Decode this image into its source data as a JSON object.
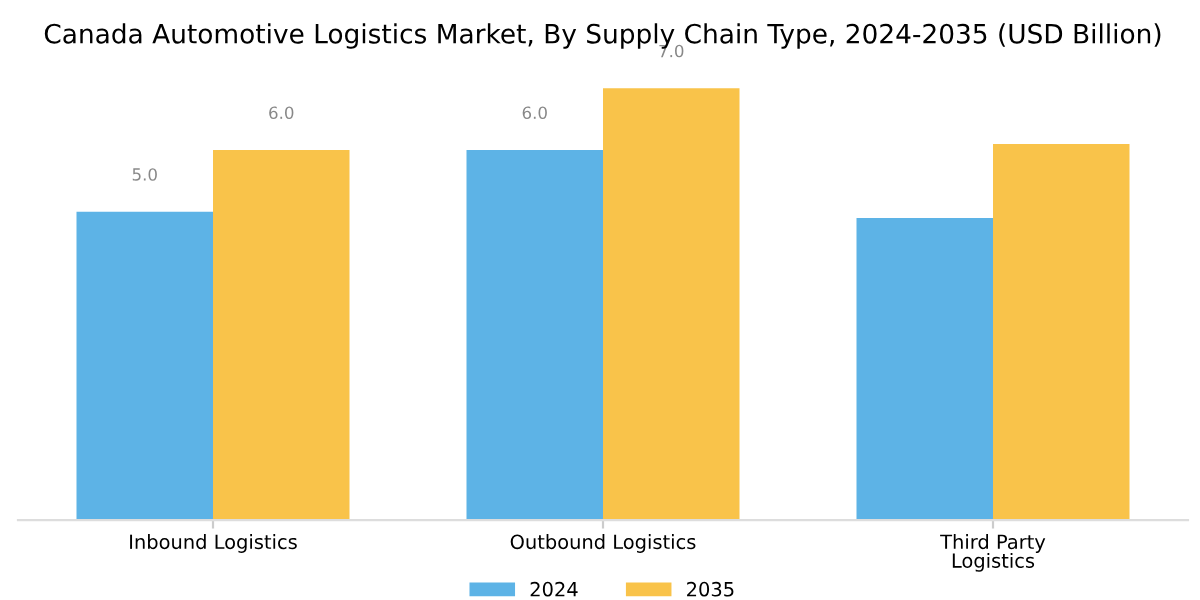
{
  "chart_data": {
    "type": "bar",
    "title": "Canada Automotive Logistics Market, By Supply Chain Type, 2024-2035 (USD Billion)",
    "categories": [
      "Inbound Logistics",
      "Outbound Logistics",
      "Third Party\nLogistics"
    ],
    "series": [
      {
        "name": "2024",
        "color": "#5db3e6",
        "values": [
          5.0,
          6.0,
          4.9
        ],
        "value_labels": [
          "5.0",
          "6.0",
          null
        ]
      },
      {
        "name": "2035",
        "color": "#f9c34a",
        "values": [
          6.0,
          7.0,
          6.1
        ],
        "value_labels": [
          "6.0",
          "7.0",
          null
        ]
      }
    ],
    "ylim": [
      0,
      7.1
    ],
    "tick_labels": "x",
    "grid": false,
    "legend": "bottom"
  }
}
